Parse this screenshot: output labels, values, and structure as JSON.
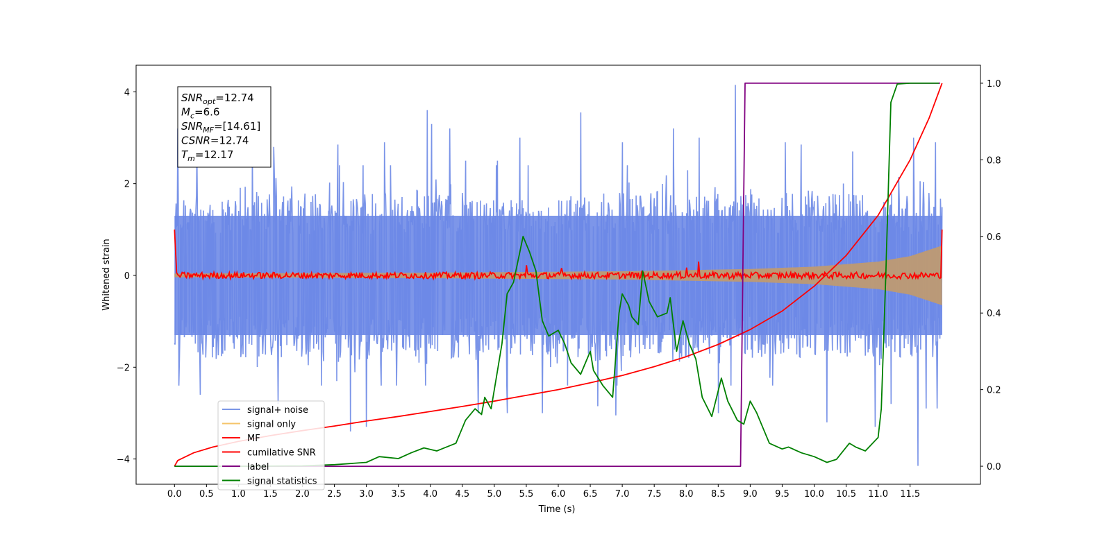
{
  "chart_data": {
    "type": "line",
    "xlabel": "Time (s)",
    "ylabel": "Whitened strain",
    "xlim": [
      -0.6,
      12.6
    ],
    "ylim": [
      -4.55,
      4.58
    ],
    "y2lim": [
      -0.047,
      1.047
    ],
    "x_ticks": [
      0.0,
      0.5,
      1.0,
      1.5,
      2.0,
      2.5,
      3.0,
      3.5,
      4.0,
      4.5,
      5.0,
      5.5,
      6.0,
      6.5,
      7.0,
      7.5,
      8.0,
      8.5,
      9.0,
      9.5,
      10.0,
      10.5,
      11.0,
      11.5
    ],
    "x_tick_labels": [
      "0.0",
      "0.5",
      "1.0",
      "1.5",
      "2.0",
      "2.5",
      "3.0",
      "3.5",
      "4.0",
      "4.5",
      "5.0",
      "5.5",
      "6.0",
      "6.5",
      "7.0",
      "7.5",
      "8.0",
      "8.5",
      "9.0",
      "9.5",
      "10.0",
      "10.5",
      "11.0",
      "11.5"
    ],
    "y_ticks": [
      -4,
      -2,
      0,
      2,
      4
    ],
    "y_tick_labels": [
      "−4",
      "−2",
      "0",
      "2",
      "4"
    ],
    "y2_ticks": [
      0.0,
      0.2,
      0.4,
      0.6,
      0.8,
      1.0
    ],
    "y2_tick_labels": [
      "0.0",
      "0.2",
      "0.4",
      "0.6",
      "0.8",
      "1.0"
    ],
    "grid": false,
    "legend_position": "lower-left",
    "legend": [
      {
        "label": "signal+ noise",
        "color": "#7b96e6"
      },
      {
        "label": "signal only",
        "color": "#f5c46a"
      },
      {
        "label": "MF",
        "color": "#ff0000"
      },
      {
        "label": "cumilative SNR",
        "color": "#ff0000"
      },
      {
        "label": "label",
        "color": "#800080"
      },
      {
        "label": "signal statistics",
        "color": "#008000"
      }
    ],
    "annotation": [
      {
        "var": "SNR",
        "sub": "opt",
        "rest": "=12.74"
      },
      {
        "var": "M",
        "sub": "c",
        "rest": "=6.6"
      },
      {
        "var": "SNR",
        "sub": "MF",
        "rest": "=[14.61]"
      },
      {
        "var": "CSNR",
        "sub": "",
        "rest": "=12.74"
      },
      {
        "var": "T",
        "sub": "m",
        "rest": "=12.17"
      }
    ],
    "series": [
      {
        "name": "signal+ noise",
        "axis": "left",
        "color": "#6b88e6",
        "x_range": [
          0.0,
          12.0
        ],
        "band": [
          -1.3,
          1.3
        ],
        "spikes": [
          [
            0.05,
            3.2
          ],
          [
            0.07,
            -2.4
          ],
          [
            0.35,
            2.7
          ],
          [
            0.4,
            -2.6
          ],
          [
            1.22,
            2.7
          ],
          [
            1.55,
            2.8
          ],
          [
            1.62,
            -2.8
          ],
          [
            2.55,
            2.85
          ],
          [
            2.75,
            -3.4
          ],
          [
            3.0,
            -3.3
          ],
          [
            3.28,
            2.9
          ],
          [
            3.95,
            3.6
          ],
          [
            4.02,
            3.3
          ],
          [
            4.3,
            3.2
          ],
          [
            4.55,
            2.5
          ],
          [
            4.75,
            -3.0
          ],
          [
            5.05,
            2.5
          ],
          [
            5.2,
            -3.0
          ],
          [
            5.4,
            3.0
          ],
          [
            5.75,
            -3.0
          ],
          [
            6.35,
            3.55
          ],
          [
            6.62,
            -2.85
          ],
          [
            6.9,
            -3.05
          ],
          [
            7.0,
            2.9
          ],
          [
            7.8,
            3.2
          ],
          [
            8.2,
            3.0
          ],
          [
            8.5,
            -3.0
          ],
          [
            8.77,
            4.15
          ],
          [
            9.55,
            2.9
          ],
          [
            9.8,
            2.85
          ],
          [
            10.2,
            -3.2
          ],
          [
            10.6,
            2.7
          ],
          [
            10.95,
            -3.3
          ],
          [
            11.2,
            -2.8
          ],
          [
            11.55,
            3.0
          ],
          [
            11.62,
            -4.15
          ],
          [
            11.75,
            -2.9
          ],
          [
            11.9,
            2.9
          ],
          [
            11.92,
            -2.9
          ]
        ]
      },
      {
        "name": "signal only",
        "axis": "left",
        "color": "#bf9a72",
        "envelope": [
          [
            0.0,
            0.04
          ],
          [
            4.0,
            0.06
          ],
          [
            7.0,
            0.09
          ],
          [
            9.0,
            0.14
          ],
          [
            10.0,
            0.19
          ],
          [
            11.0,
            0.3
          ],
          [
            11.5,
            0.42
          ],
          [
            12.0,
            0.65
          ]
        ]
      },
      {
        "name": "MF",
        "axis": "left",
        "color": "#ff0000",
        "amplitude": 0.07,
        "edges": [
          [
            0.0,
            1.0
          ],
          [
            11.98,
            -0.05
          ],
          [
            12.0,
            1.0
          ]
        ],
        "spikes": [
          [
            5.5,
            0.22
          ],
          [
            8.2,
            0.3
          ],
          [
            6.05,
            0.16
          ],
          [
            8.0,
            0.17
          ]
        ]
      },
      {
        "name": "cumilative SNR",
        "axis": "right",
        "color": "#ff0000",
        "points": [
          [
            0.0,
            0.0
          ],
          [
            0.05,
            0.015
          ],
          [
            0.3,
            0.035
          ],
          [
            0.6,
            0.05
          ],
          [
            1.0,
            0.065
          ],
          [
            1.5,
            0.08
          ],
          [
            2.0,
            0.093
          ],
          [
            2.5,
            0.105
          ],
          [
            3.0,
            0.118
          ],
          [
            3.5,
            0.13
          ],
          [
            4.0,
            0.143
          ],
          [
            4.5,
            0.156
          ],
          [
            5.0,
            0.17
          ],
          [
            5.5,
            0.185
          ],
          [
            6.0,
            0.2
          ],
          [
            6.5,
            0.218
          ],
          [
            7.0,
            0.237
          ],
          [
            7.5,
            0.26
          ],
          [
            8.0,
            0.286
          ],
          [
            8.5,
            0.318
          ],
          [
            9.0,
            0.357
          ],
          [
            9.5,
            0.405
          ],
          [
            10.0,
            0.47
          ],
          [
            10.5,
            0.55
          ],
          [
            11.0,
            0.655
          ],
          [
            11.5,
            0.8
          ],
          [
            11.8,
            0.91
          ],
          [
            12.0,
            1.0
          ]
        ]
      },
      {
        "name": "label",
        "axis": "right",
        "color": "#800080",
        "points": [
          [
            0.0,
            0.0
          ],
          [
            8.85,
            0.0
          ],
          [
            8.92,
            1.0
          ],
          [
            11.97,
            1.0
          ]
        ]
      },
      {
        "name": "signal statistics",
        "axis": "right",
        "color": "#008000",
        "points": [
          [
            0.0,
            0.0
          ],
          [
            1.0,
            0.0
          ],
          [
            2.0,
            0.001
          ],
          [
            2.5,
            0.004
          ],
          [
            3.0,
            0.01
          ],
          [
            3.2,
            0.025
          ],
          [
            3.5,
            0.02
          ],
          [
            3.7,
            0.035
          ],
          [
            3.9,
            0.048
          ],
          [
            4.1,
            0.04
          ],
          [
            4.4,
            0.06
          ],
          [
            4.55,
            0.12
          ],
          [
            4.7,
            0.15
          ],
          [
            4.8,
            0.135
          ],
          [
            4.85,
            0.18
          ],
          [
            4.95,
            0.15
          ],
          [
            5.05,
            0.25
          ],
          [
            5.12,
            0.32
          ],
          [
            5.2,
            0.45
          ],
          [
            5.3,
            0.48
          ],
          [
            5.35,
            0.52
          ],
          [
            5.45,
            0.6
          ],
          [
            5.55,
            0.56
          ],
          [
            5.65,
            0.51
          ],
          [
            5.75,
            0.38
          ],
          [
            5.85,
            0.34
          ],
          [
            6.0,
            0.355
          ],
          [
            6.1,
            0.32
          ],
          [
            6.2,
            0.27
          ],
          [
            6.35,
            0.24
          ],
          [
            6.5,
            0.3
          ],
          [
            6.55,
            0.25
          ],
          [
            6.7,
            0.21
          ],
          [
            6.85,
            0.18
          ],
          [
            6.95,
            0.4
          ],
          [
            7.0,
            0.45
          ],
          [
            7.1,
            0.42
          ],
          [
            7.15,
            0.39
          ],
          [
            7.25,
            0.37
          ],
          [
            7.32,
            0.51
          ],
          [
            7.42,
            0.43
          ],
          [
            7.55,
            0.39
          ],
          [
            7.7,
            0.4
          ],
          [
            7.75,
            0.44
          ],
          [
            7.85,
            0.3
          ],
          [
            7.95,
            0.38
          ],
          [
            8.05,
            0.32
          ],
          [
            8.15,
            0.28
          ],
          [
            8.25,
            0.18
          ],
          [
            8.4,
            0.13
          ],
          [
            8.55,
            0.23
          ],
          [
            8.65,
            0.17
          ],
          [
            8.8,
            0.12
          ],
          [
            8.9,
            0.11
          ],
          [
            9.0,
            0.17
          ],
          [
            9.1,
            0.14
          ],
          [
            9.3,
            0.06
          ],
          [
            9.5,
            0.045
          ],
          [
            9.6,
            0.05
          ],
          [
            9.8,
            0.035
          ],
          [
            10.0,
            0.025
          ],
          [
            10.2,
            0.01
          ],
          [
            10.35,
            0.018
          ],
          [
            10.55,
            0.06
          ],
          [
            10.65,
            0.05
          ],
          [
            10.8,
            0.04
          ],
          [
            11.0,
            0.075
          ],
          [
            11.05,
            0.15
          ],
          [
            11.12,
            0.5
          ],
          [
            11.2,
            0.95
          ],
          [
            11.3,
            0.998
          ],
          [
            11.5,
            1.0
          ],
          [
            11.95,
            1.0
          ]
        ]
      }
    ]
  }
}
